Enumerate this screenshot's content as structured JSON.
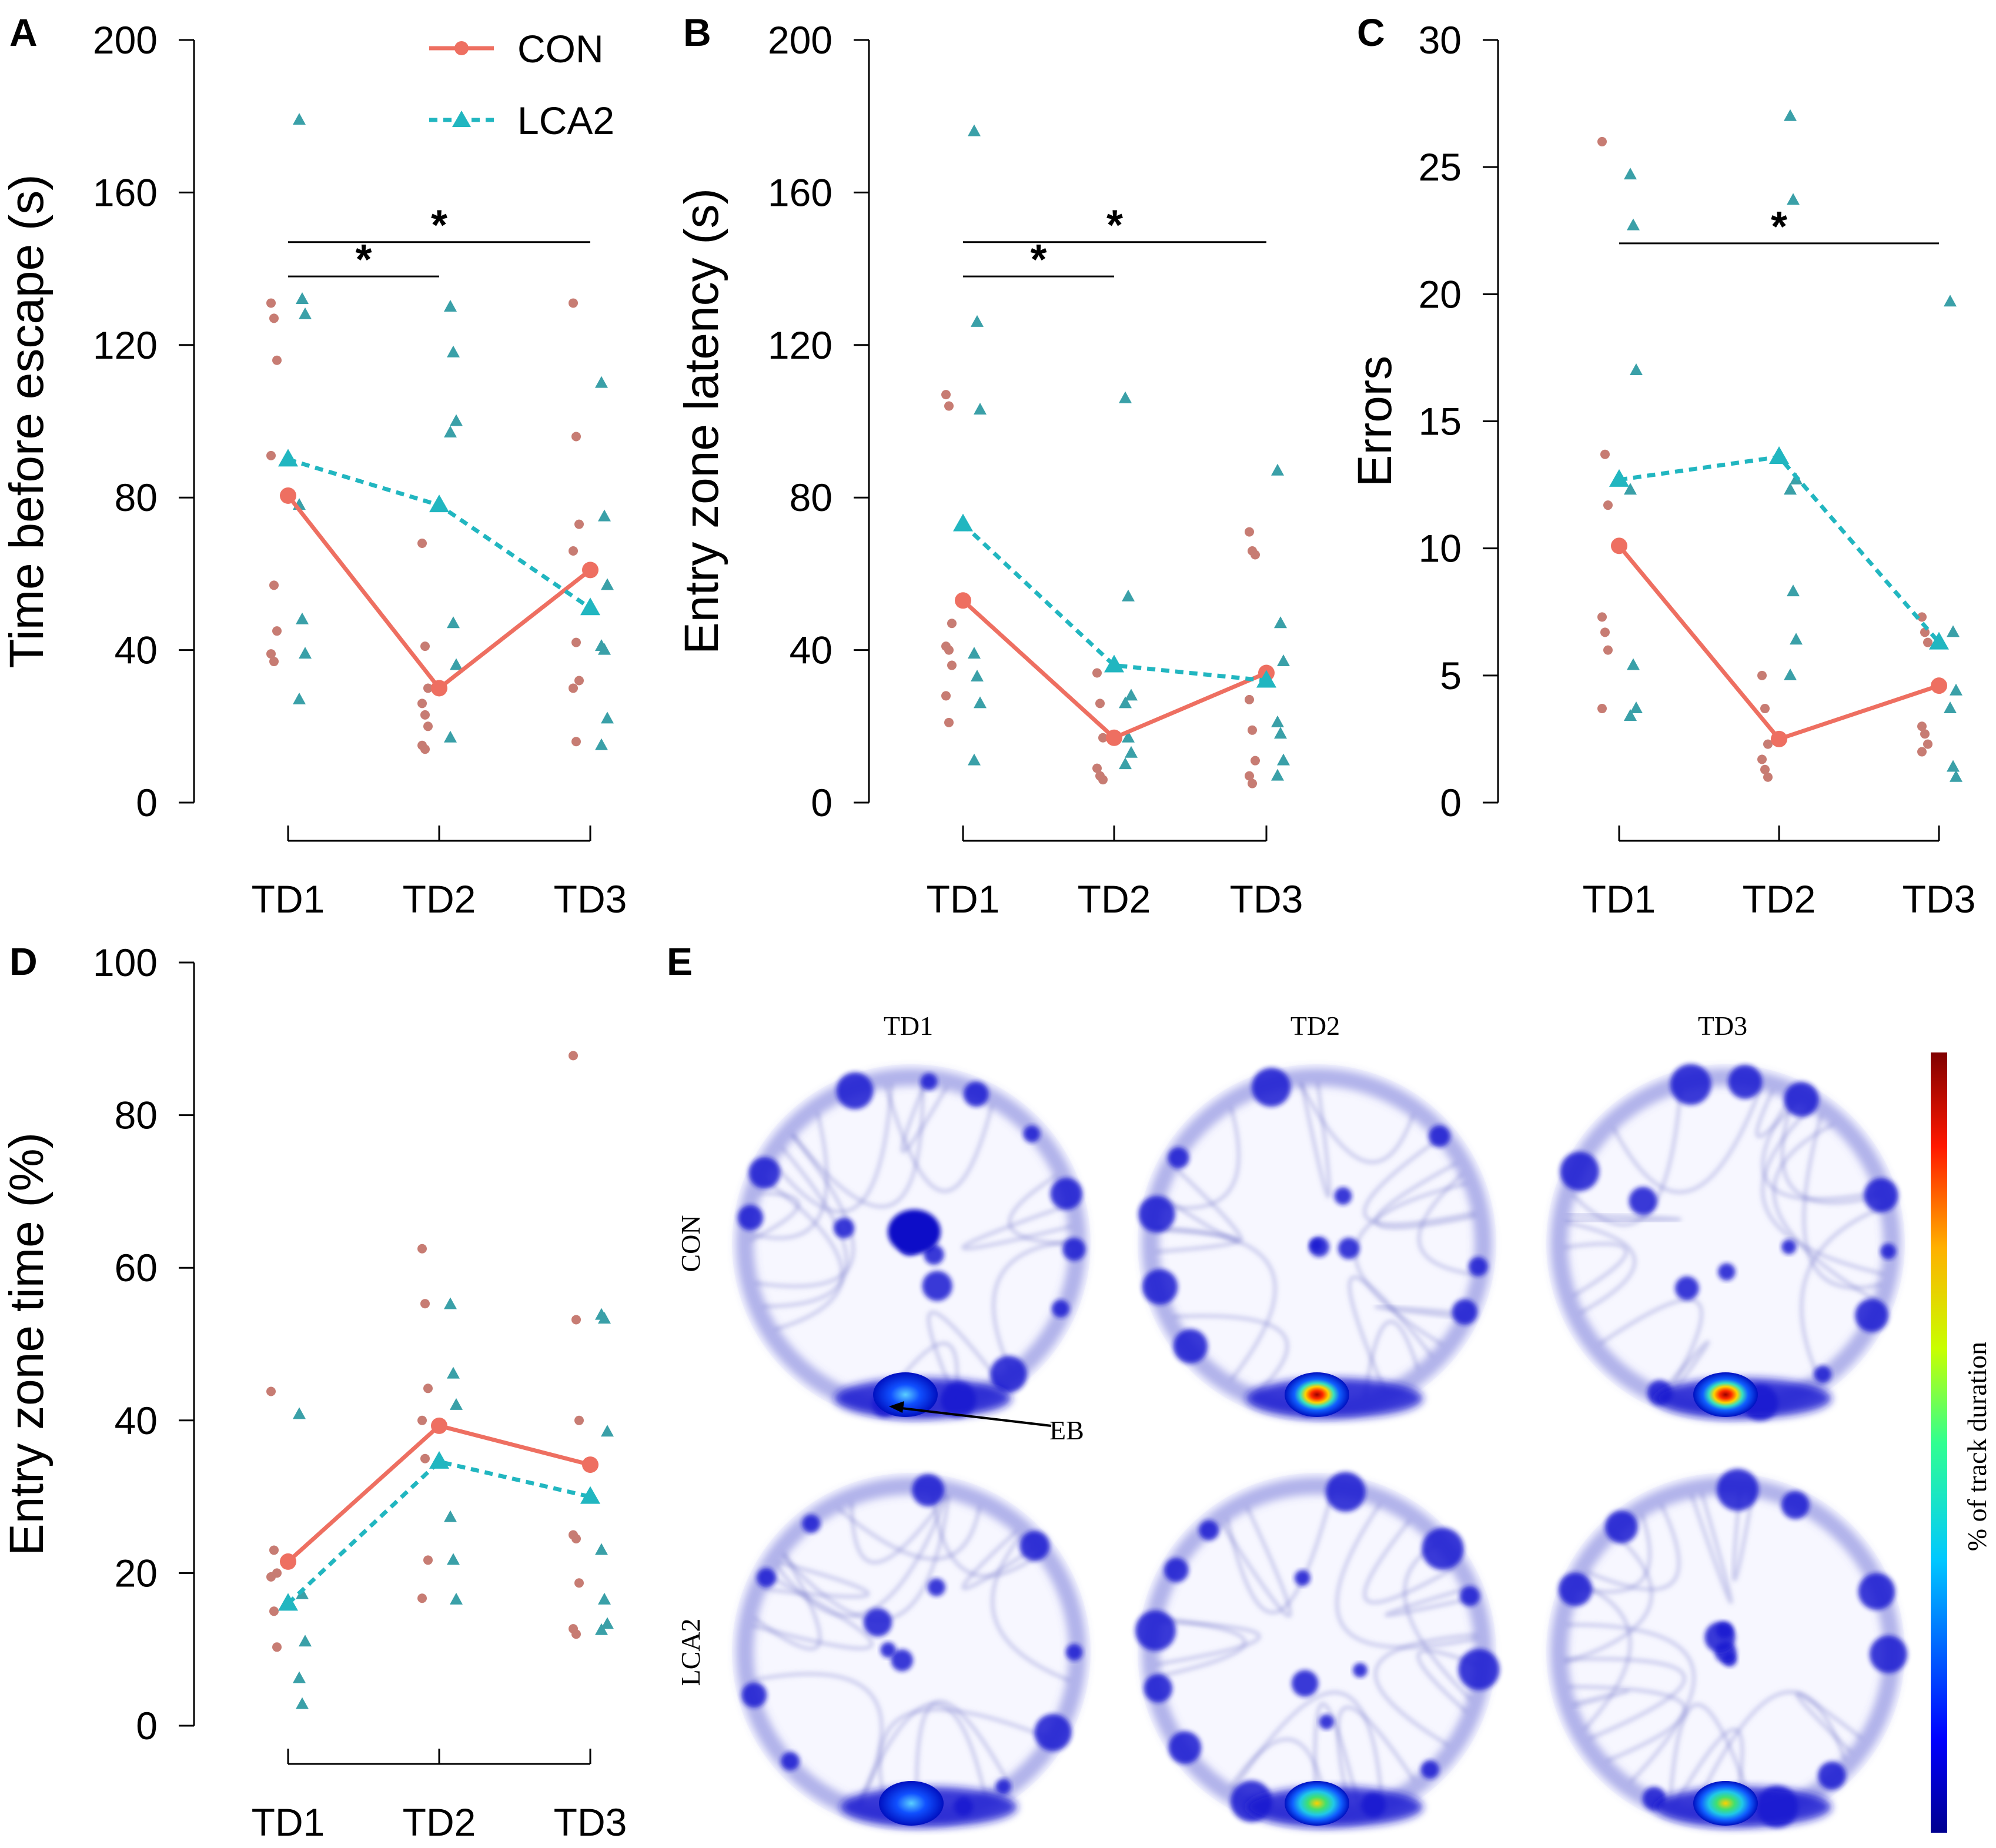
{
  "colors": {
    "con": "#EE6F61",
    "con_points": "#C77C73",
    "lca2": "#21B6C0",
    "lca2_points": "#3AA0A8",
    "axis": "#000000",
    "heat_low": "#0000c8",
    "heat_high": "#d11a1a"
  },
  "legend": {
    "con_label": "CON",
    "lca2_label": "LCA2"
  },
  "chart_data": [
    {
      "panel": "A",
      "type": "scatter",
      "ylabel": "Time before escape (s)",
      "ylim": [
        0,
        200
      ],
      "yticks": [
        0,
        40,
        80,
        120,
        160,
        200
      ],
      "categories": [
        "TD1",
        "TD2",
        "TD3"
      ],
      "series": [
        {
          "name": "CON",
          "means": [
            80.5,
            30,
            61
          ],
          "points": [
            [
              131,
              127,
              116,
              91,
              57,
              45,
              39,
              37
            ],
            [
              68,
              41,
              30,
              26,
              23,
              20,
              15,
              14
            ],
            [
              131,
              96,
              73,
              66,
              42,
              32,
              30,
              16
            ]
          ]
        },
        {
          "name": "LCA2",
          "means": [
            90,
            78,
            51
          ],
          "points": [
            [
              179,
              132,
              128,
              78,
              48,
              39,
              27
            ],
            [
              130,
              118,
              100,
              97,
              47,
              36,
              17
            ],
            [
              110,
              75,
              57,
              41,
              40,
              22,
              15
            ]
          ]
        }
      ],
      "significance": [
        {
          "from": "TD1",
          "to": "TD2",
          "label": "*",
          "y": 138
        },
        {
          "from": "TD1",
          "to": "TD3",
          "label": "*",
          "y": 147
        }
      ]
    },
    {
      "panel": "B",
      "type": "scatter",
      "ylabel": "Entry zone latency (s)",
      "ylim": [
        0,
        200
      ],
      "yticks": [
        0,
        40,
        80,
        120,
        160,
        200
      ],
      "categories": [
        "TD1",
        "TD2",
        "TD3"
      ],
      "series": [
        {
          "name": "CON",
          "means": [
            53,
            17,
            34
          ],
          "points": [
            [
              107,
              104,
              47,
              41,
              40,
              36,
              28,
              21
            ],
            [
              34,
              26,
              17,
              9,
              7,
              6
            ],
            [
              71,
              66,
              65,
              27,
              19,
              11,
              7,
              5
            ]
          ]
        },
        {
          "name": "LCA2",
          "means": [
            73,
            36,
            32
          ],
          "points": [
            [
              176,
              126,
              103,
              39,
              33,
              26,
              11
            ],
            [
              106,
              54,
              28,
              26,
              17,
              13,
              10
            ],
            [
              87,
              47,
              37,
              21,
              18,
              11,
              7
            ]
          ]
        }
      ],
      "significance": [
        {
          "from": "TD1",
          "to": "TD2",
          "label": "*",
          "y": 138
        },
        {
          "from": "TD1",
          "to": "TD3",
          "label": "*",
          "y": 147
        }
      ]
    },
    {
      "panel": "C",
      "type": "scatter",
      "ylabel": "Errors",
      "ylim": [
        0,
        30
      ],
      "yticks": [
        0,
        5,
        10,
        15,
        20,
        25,
        30
      ],
      "categories": [
        "TD1",
        "TD2",
        "TD3"
      ],
      "series": [
        {
          "name": "CON",
          "means": [
            10.1,
            2.5,
            4.6
          ],
          "points": [
            [
              26,
              13.7,
              11.7,
              7.3,
              6.7,
              6,
              3.7
            ],
            [
              5,
              3.7,
              2.3,
              1.7,
              1.3,
              1
            ],
            [
              7.3,
              6.7,
              6.3,
              3,
              2.7,
              2.3,
              2
            ]
          ]
        },
        {
          "name": "LCA2",
          "means": [
            12.7,
            13.6,
            6.3
          ],
          "points": [
            [
              24.7,
              22.7,
              17,
              12.3,
              5.4,
              3.7,
              3.4
            ],
            [
              27,
              23.7,
              12.7,
              12.3,
              8.3,
              6.4,
              5
            ],
            [
              19.7,
              6.7,
              4.4,
              3.7,
              1.4,
              1
            ]
          ]
        }
      ],
      "significance": [
        {
          "from": "TD1",
          "to": "TD3",
          "label": "*",
          "y": 22
        }
      ]
    },
    {
      "panel": "D",
      "type": "scatter",
      "ylabel": "Entry zone time (%)",
      "ylim": [
        0,
        100
      ],
      "yticks": [
        0,
        20,
        40,
        60,
        80,
        100
      ],
      "categories": [
        "TD1",
        "TD2",
        "TD3"
      ],
      "series": [
        {
          "name": "CON",
          "means": [
            21.5,
            39.3,
            34.2
          ],
          "points": [
            [
              43.8,
              23,
              20,
              19.5,
              15,
              10.3
            ],
            [
              62.5,
              55.3,
              44.2,
              40,
              35,
              21.7,
              16.7
            ],
            [
              87.8,
              53.2,
              40,
              25,
              24.5,
              18.7,
              12.7,
              12
            ]
          ]
        },
        {
          "name": "LCA2",
          "means": [
            16,
            34.6,
            30
          ],
          "points": [
            [
              40.8,
              17.2,
              11,
              6.2,
              2.8
            ],
            [
              55.2,
              46.1,
              42,
              27.3,
              21.7,
              16.5
            ],
            [
              53.8,
              53.3,
              38.5,
              23,
              16.5,
              13.3,
              12.5
            ]
          ]
        }
      ],
      "significance": []
    }
  ],
  "heatmap_panel": {
    "panel": "E",
    "columns": [
      "TD1",
      "TD2",
      "TD3"
    ],
    "rows": [
      "CON",
      "LCA2"
    ],
    "arrow_label": "EB",
    "colorbar_label": "% of track duration"
  }
}
